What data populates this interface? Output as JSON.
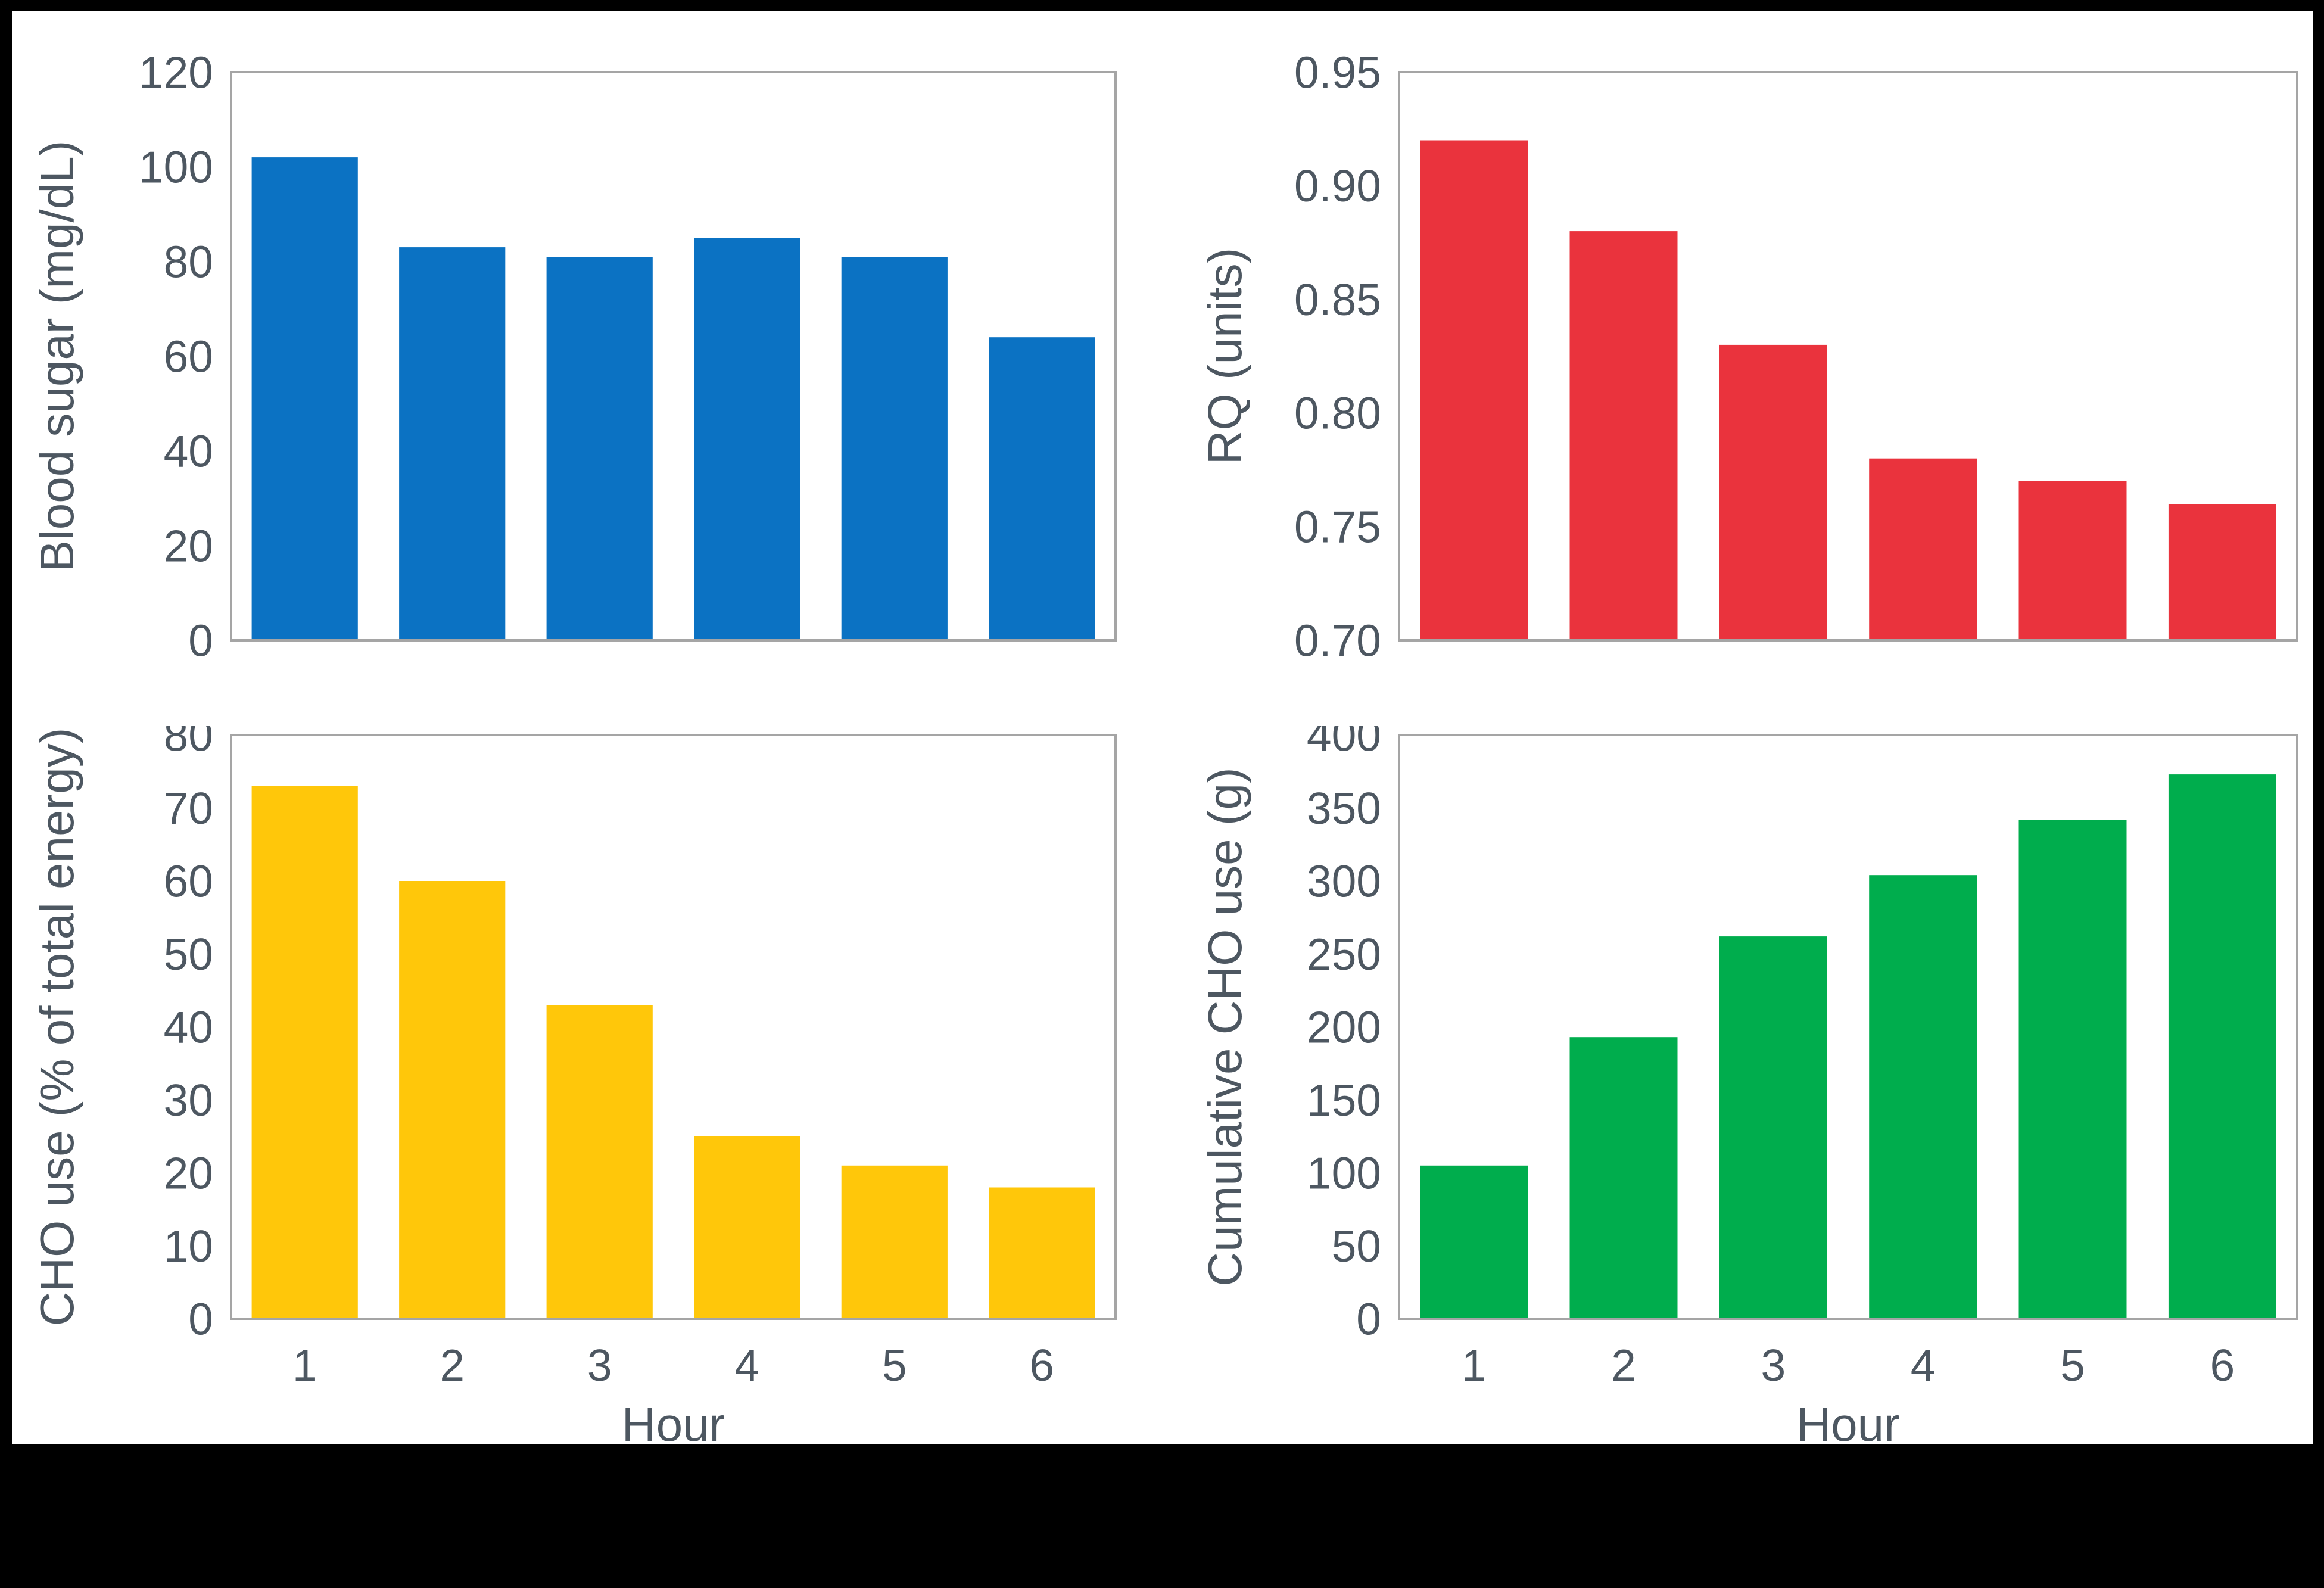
{
  "page": {
    "frame_color": "#000000",
    "canvas_color": "#ffffff",
    "axis_border_color": "#a5a5a5",
    "text_color": "#4d5761"
  },
  "chart_data": [
    {
      "id": "blood-sugar",
      "type": "bar",
      "title": "",
      "ylabel": "Blood sugar (mg/dL)",
      "xlabel": "",
      "categories": [
        "1",
        "2",
        "3",
        "4",
        "5",
        "6"
      ],
      "values": [
        102,
        83,
        81,
        85,
        81,
        64
      ],
      "ylim": [
        0,
        120
      ],
      "ytick_step": 20,
      "ytick_decimals": 0,
      "bar_color": "#0b72c3",
      "show_x_ticks": false,
      "grid": false,
      "legend": null
    },
    {
      "id": "rq",
      "type": "bar",
      "title": "",
      "ylabel": "RQ (units)",
      "xlabel": "",
      "categories": [
        "1",
        "2",
        "3",
        "4",
        "5",
        "6"
      ],
      "values": [
        0.92,
        0.88,
        0.83,
        0.78,
        0.77,
        0.76
      ],
      "ylim": [
        0.7,
        0.95
      ],
      "ytick_step": 0.05,
      "ytick_decimals": 2,
      "bar_color": "#ea333d",
      "show_x_ticks": false,
      "grid": false,
      "legend": null
    },
    {
      "id": "cho-use-percent",
      "type": "bar",
      "title": "",
      "ylabel": "CHO use (% of total energy)",
      "xlabel": "Hour",
      "categories": [
        "1",
        "2",
        "3",
        "4",
        "5",
        "6"
      ],
      "values": [
        73,
        60,
        43,
        25,
        21,
        18
      ],
      "ylim": [
        0,
        80
      ],
      "ytick_step": 10,
      "ytick_decimals": 0,
      "bar_color": "#ffc70a",
      "show_x_ticks": true,
      "grid": false,
      "legend": null
    },
    {
      "id": "cumulative-cho",
      "type": "bar",
      "title": "",
      "ylabel": "Cumulative CHO use (g)",
      "xlabel": "Hour",
      "categories": [
        "1",
        "2",
        "3",
        "4",
        "5",
        "6"
      ],
      "values": [
        105,
        193,
        262,
        304,
        342,
        373
      ],
      "ylim": [
        0,
        400
      ],
      "ytick_step": 50,
      "ytick_decimals": 0,
      "bar_color": "#00ad4d",
      "show_x_ticks": true,
      "grid": false,
      "legend": null
    }
  ]
}
